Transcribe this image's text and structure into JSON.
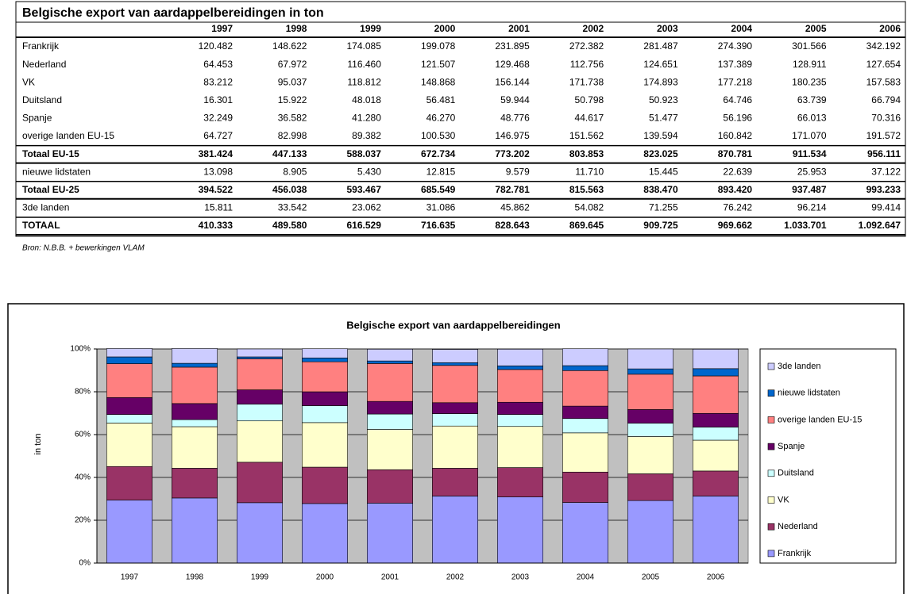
{
  "table": {
    "title": "Belgische export van aardappelbereidingen in ton",
    "header": [
      "1997",
      "1998",
      "1999",
      "2000",
      "2001",
      "2002",
      "2003",
      "2004",
      "2005",
      "2006"
    ],
    "rows": [
      {
        "label": "Frankrijk",
        "values": [
          "120.482",
          "148.622",
          "174.085",
          "199.078",
          "231.895",
          "272.382",
          "281.487",
          "274.390",
          "301.566",
          "342.192"
        ]
      },
      {
        "label": "Nederland",
        "values": [
          "64.453",
          "67.972",
          "116.460",
          "121.507",
          "129.468",
          "112.756",
          "124.651",
          "137.389",
          "128.911",
          "127.654"
        ]
      },
      {
        "label": "VK",
        "values": [
          "83.212",
          "95.037",
          "118.812",
          "148.868",
          "156.144",
          "171.738",
          "174.893",
          "177.218",
          "180.235",
          "157.583"
        ]
      },
      {
        "label": "Duitsland",
        "values": [
          "16.301",
          "15.922",
          "48.018",
          "56.481",
          "59.944",
          "50.798",
          "50.923",
          "64.746",
          "63.739",
          "66.794"
        ]
      },
      {
        "label": "Spanje",
        "values": [
          "32.249",
          "36.582",
          "41.280",
          "46.270",
          "48.776",
          "44.617",
          "51.477",
          "56.196",
          "66.013",
          "70.316"
        ]
      },
      {
        "label": "overige landen EU-15",
        "values": [
          "64.727",
          "82.998",
          "89.382",
          "100.530",
          "146.975",
          "151.562",
          "139.594",
          "160.842",
          "171.070",
          "191.572"
        ]
      },
      {
        "label": "Totaal EU-15",
        "bold": true,
        "values": [
          "381.424",
          "447.133",
          "588.037",
          "672.734",
          "773.202",
          "803.853",
          "823.025",
          "870.781",
          "911.534",
          "956.111"
        ]
      },
      {
        "label": "nieuwe lidstaten",
        "values": [
          "13.098",
          "8.905",
          "5.430",
          "12.815",
          "9.579",
          "11.710",
          "15.445",
          "22.639",
          "25.953",
          "37.122"
        ]
      },
      {
        "label": "Totaal EU-25",
        "bold": true,
        "values": [
          "394.522",
          "456.038",
          "593.467",
          "685.549",
          "782.781",
          "815.563",
          "838.470",
          "893.420",
          "937.487",
          "993.233"
        ]
      },
      {
        "label": "3de landen",
        "values": [
          "15.811",
          "33.542",
          "23.062",
          "31.086",
          "45.862",
          "54.082",
          "71.255",
          "76.242",
          "96.214",
          "99.414"
        ]
      },
      {
        "label": "TOTAAL",
        "bold": true,
        "values": [
          "410.333",
          "489.580",
          "616.529",
          "716.635",
          "828.643",
          "869.645",
          "909.725",
          "969.662",
          "1.033.701",
          "1.092.647"
        ]
      }
    ],
    "source": "Bron: N.B.B. + bewerkingen VLAM"
  },
  "chart_data": {
    "type": "stacked_bar",
    "title": "Belgische export van aardappelbereidingen",
    "y_label": "in ton",
    "categories": [
      "1997",
      "1998",
      "1999",
      "2000",
      "2001",
      "2002",
      "2003",
      "2004",
      "2005",
      "2006"
    ],
    "ylim": [
      0,
      100
    ],
    "yticks": [
      {
        "value": 0,
        "label": "0%"
      },
      {
        "value": 20,
        "label": "20%"
      },
      {
        "value": 40,
        "label": "40%"
      },
      {
        "value": 60,
        "label": "60%"
      },
      {
        "value": 80,
        "label": "80%"
      },
      {
        "value": 100,
        "label": "100%"
      }
    ],
    "grid": true,
    "legend": "right",
    "series": [
      {
        "name": "Frankrijk",
        "color": "#9999ff",
        "values": [
          29.4,
          30.4,
          28.2,
          27.8,
          28.0,
          31.3,
          30.9,
          28.3,
          29.2,
          31.3
        ]
      },
      {
        "name": "Nederland",
        "color": "#993366",
        "values": [
          15.7,
          13.9,
          18.9,
          17.0,
          15.6,
          13.0,
          13.7,
          14.2,
          12.5,
          11.7
        ]
      },
      {
        "name": "VK",
        "color": "#ffffcc",
        "values": [
          20.3,
          19.4,
          19.3,
          20.8,
          18.8,
          19.7,
          19.2,
          18.3,
          17.4,
          14.4
        ]
      },
      {
        "name": "Duitsland",
        "color": "#ccffff",
        "values": [
          4.0,
          3.3,
          7.8,
          7.9,
          7.2,
          5.8,
          5.6,
          6.7,
          6.2,
          6.1
        ]
      },
      {
        "name": "Spanje",
        "color": "#660066",
        "values": [
          7.9,
          7.5,
          6.7,
          6.5,
          5.9,
          5.1,
          5.7,
          5.8,
          6.4,
          6.4
        ]
      },
      {
        "name": "overige landen EU-15",
        "color": "#ff8080",
        "values": [
          15.8,
          17.0,
          14.5,
          14.0,
          17.7,
          17.4,
          15.3,
          16.6,
          16.5,
          17.5
        ]
      },
      {
        "name": "nieuwe lidstaten",
        "color": "#0066cc",
        "values": [
          3.2,
          1.8,
          0.9,
          1.8,
          1.2,
          1.3,
          1.7,
          2.3,
          2.5,
          3.4
        ]
      },
      {
        "name": "3de landen",
        "color": "#ccccff",
        "values": [
          3.9,
          6.9,
          3.7,
          4.3,
          5.5,
          6.2,
          7.8,
          7.9,
          9.3,
          9.1
        ]
      }
    ]
  }
}
